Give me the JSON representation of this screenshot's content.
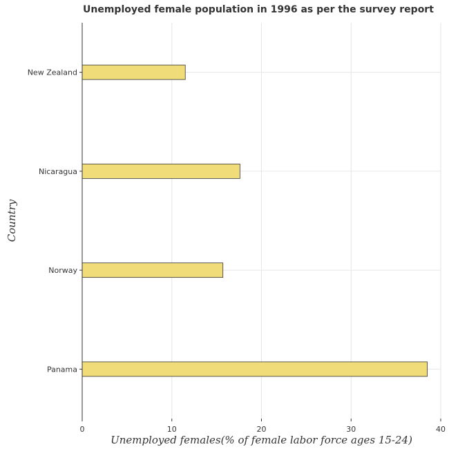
{
  "chart_data": {
    "type": "bar",
    "orientation": "horizontal",
    "title": "Unemployed female population in 1996 as per the survey report",
    "xlabel": "Unemployed females(% of female labor force ages 15-24)",
    "ylabel": "Country",
    "categories": [
      "New Zealand",
      "Nicaragua",
      "Norway",
      "Panama"
    ],
    "values": [
      11.5,
      17.6,
      15.7,
      38.5
    ],
    "xlim": [
      0,
      40
    ],
    "xticks": [
      0,
      10,
      20,
      30,
      40
    ],
    "grid": true,
    "bar_color": "#f0dc78",
    "bar_edge_color": "#333333"
  }
}
